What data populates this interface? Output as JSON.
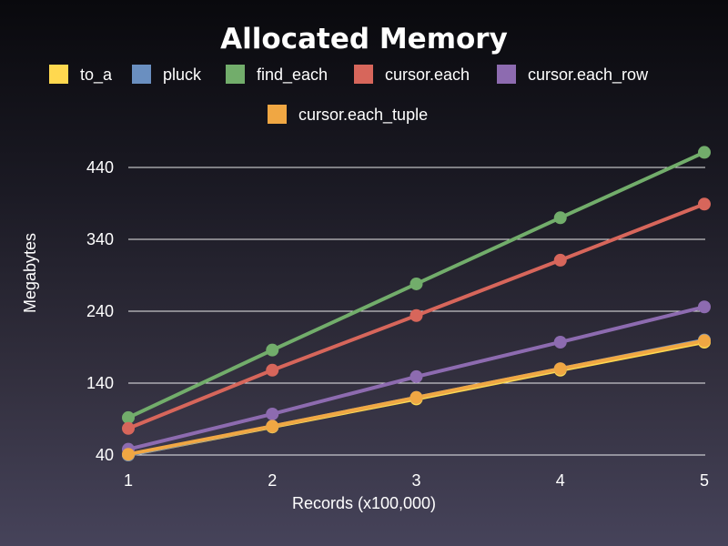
{
  "chart_data": {
    "type": "line",
    "title": "Allocated Memory",
    "xlabel": "Records (x100,000)",
    "ylabel": "Megabytes",
    "x": [
      1,
      2,
      3,
      4,
      5
    ],
    "x_ticks": [
      "1",
      "2",
      "3",
      "4",
      "5"
    ],
    "xlim": [
      1,
      5
    ],
    "ylim": [
      40,
      440
    ],
    "y_ticks": [
      40,
      140,
      240,
      340,
      440
    ],
    "grid": "horizontal",
    "legend_position": "top",
    "series": [
      {
        "name": "to_a",
        "color": "#ffd84f",
        "values": [
          40,
          79,
          118,
          158,
          197
        ]
      },
      {
        "name": "pluck",
        "color": "#6a8fc0",
        "values": [
          40,
          80,
          120,
          160,
          200
        ]
      },
      {
        "name": "find_each",
        "color": "#72ad6b",
        "values": [
          92,
          186,
          278,
          370,
          461
        ]
      },
      {
        "name": "cursor.each",
        "color": "#d7665b",
        "values": [
          77,
          158,
          234,
          311,
          389
        ]
      },
      {
        "name": "cursor.each_row",
        "color": "#8d6bb0",
        "values": [
          48,
          97,
          149,
          197,
          246
        ]
      },
      {
        "name": "cursor.each_tuple",
        "color": "#f0a743",
        "values": [
          41,
          80,
          120,
          160,
          199
        ]
      }
    ]
  }
}
